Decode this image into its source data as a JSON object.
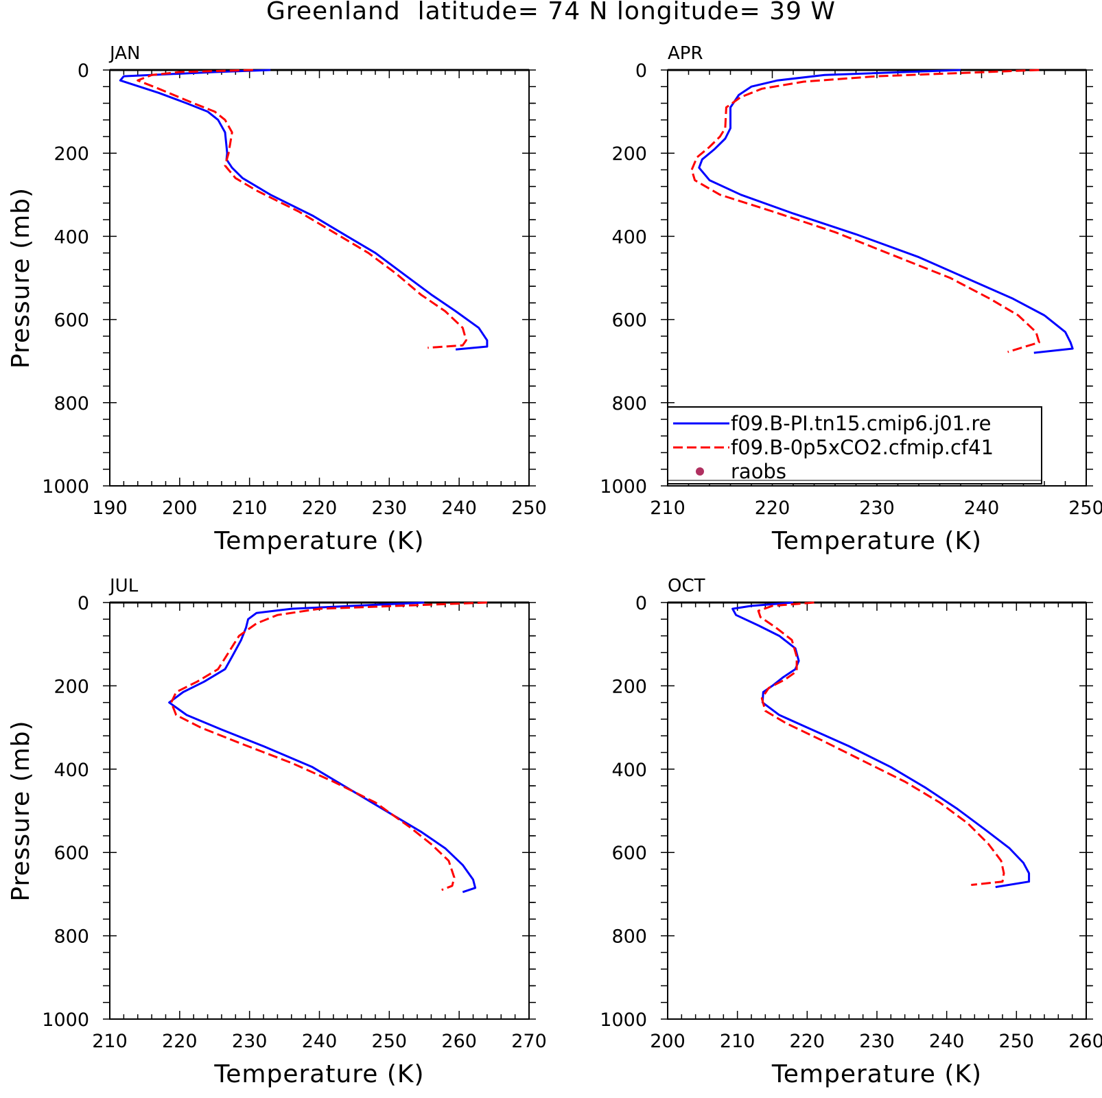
{
  "figure": {
    "title": "Greenland  latitude= 74 N longitude= 39 W"
  },
  "chart_data": [
    {
      "type": "line",
      "panel_label": "JAN",
      "xlabel": "Temperature (K)",
      "ylabel": "Pressure (mb)",
      "xlim": [
        190,
        250
      ],
      "ylim": [
        0,
        1000
      ],
      "y_inverted": true,
      "xticks": [
        190,
        200,
        210,
        220,
        230,
        240,
        250
      ],
      "yticks": [
        0,
        200,
        400,
        600,
        800,
        1000
      ],
      "series": [
        {
          "name": "f09.B-PI.tn15.cmip6.j01.re",
          "color": "#0000ff",
          "dash": "solid",
          "points": [
            [
              213,
              0
            ],
            [
              205,
              5
            ],
            [
              192,
              15
            ],
            [
              191.5,
              25
            ],
            [
              197,
              55
            ],
            [
              201,
              80
            ],
            [
              204,
              100
            ],
            [
              205.5,
              120
            ],
            [
              206.5,
              150
            ],
            [
              206.8,
              200
            ],
            [
              206.7,
              215
            ],
            [
              207.5,
              235
            ],
            [
              209,
              260
            ],
            [
              213,
              300
            ],
            [
              219,
              350
            ],
            [
              224,
              400
            ],
            [
              228,
              440
            ],
            [
              232,
              490
            ],
            [
              236,
              540
            ],
            [
              239.5,
              580
            ],
            [
              242.8,
              620
            ],
            [
              244,
              650
            ],
            [
              244,
              665
            ],
            [
              239.5,
              672
            ]
          ]
        },
        {
          "name": "f09.B-0p5xCO2.cfmip.cf41",
          "color": "#ff0000",
          "dash": "dashed",
          "points": [
            [
              210.5,
              0
            ],
            [
              200,
              5
            ],
            [
              196,
              12
            ],
            [
              194,
              25
            ],
            [
              197,
              45
            ],
            [
              202,
              80
            ],
            [
              205,
              100
            ],
            [
              206.5,
              120
            ],
            [
              207.5,
              150
            ],
            [
              207,
              200
            ],
            [
              206.5,
              230
            ],
            [
              208,
              260
            ],
            [
              211,
              290
            ],
            [
              217,
              340
            ],
            [
              222,
              390
            ],
            [
              227,
              440
            ],
            [
              231,
              490
            ],
            [
              234.5,
              540
            ],
            [
              238,
              580
            ],
            [
              240.5,
              620
            ],
            [
              241,
              650
            ],
            [
              240.5,
              662
            ],
            [
              235.5,
              668
            ]
          ]
        },
        {
          "name": "raobs",
          "color": "#b03060",
          "dash": "marker",
          "points": []
        }
      ],
      "legend": "none"
    },
    {
      "type": "line",
      "panel_label": "APR",
      "xlabel": "Temperature (K)",
      "ylabel": "",
      "xlim": [
        210,
        250
      ],
      "ylim": [
        0,
        1000
      ],
      "y_inverted": true,
      "xticks": [
        210,
        220,
        230,
        240,
        250
      ],
      "yticks": [
        0,
        200,
        400,
        600,
        800,
        1000
      ],
      "series": [
        {
          "name": "f09.B-PI.tn15.cmip6.j01.re",
          "color": "#0000ff",
          "dash": "solid",
          "points": [
            [
              238,
              0
            ],
            [
              225,
              12
            ],
            [
              220.5,
              25
            ],
            [
              218,
              40
            ],
            [
              216.8,
              60
            ],
            [
              216,
              90
            ],
            [
              216,
              140
            ],
            [
              215.5,
              165
            ],
            [
              214.5,
              190
            ],
            [
              213.3,
              215
            ],
            [
              213,
              235
            ],
            [
              214,
              265
            ],
            [
              217,
              300
            ],
            [
              222,
              345
            ],
            [
              228,
              395
            ],
            [
              234,
              450
            ],
            [
              238.5,
              500
            ],
            [
              243,
              550
            ],
            [
              246,
              590
            ],
            [
              248,
              630
            ],
            [
              248.5,
              655
            ],
            [
              248.7,
              670
            ],
            [
              245,
              680
            ]
          ]
        },
        {
          "name": "f09.B-0p5xCO2.cfmip.cf41",
          "color": "#ff0000",
          "dash": "dashed",
          "points": [
            [
              245.5,
              0
            ],
            [
              230,
              15
            ],
            [
              223,
              28
            ],
            [
              219,
              45
            ],
            [
              217,
              65
            ],
            [
              215.6,
              90
            ],
            [
              215.5,
              140
            ],
            [
              215,
              160
            ],
            [
              214,
              185
            ],
            [
              212.8,
              210
            ],
            [
              212.3,
              240
            ],
            [
              212.6,
              265
            ],
            [
              215,
              300
            ],
            [
              220,
              340
            ],
            [
              226,
              390
            ],
            [
              232,
              450
            ],
            [
              237,
              500
            ],
            [
              240.8,
              550
            ],
            [
              243.5,
              590
            ],
            [
              245.2,
              630
            ],
            [
              245.5,
              655
            ],
            [
              242.5,
              678
            ]
          ]
        },
        {
          "name": "raobs",
          "color": "#b03060",
          "dash": "marker",
          "points": []
        }
      ],
      "legend": "bottom-right",
      "legend_entries": [
        "f09.B-PI.tn15.cmip6.j01.re",
        "f09.B-0p5xCO2.cfmip.cf41",
        "raobs"
      ]
    },
    {
      "type": "line",
      "panel_label": "JUL",
      "xlabel": "Temperature (K)",
      "ylabel": "Pressure (mb)",
      "xlim": [
        210,
        270
      ],
      "ylim": [
        0,
        1000
      ],
      "y_inverted": true,
      "xticks": [
        210,
        220,
        230,
        240,
        250,
        260,
        270
      ],
      "yticks": [
        0,
        200,
        400,
        600,
        800,
        1000
      ],
      "series": [
        {
          "name": "f09.B-PI.tn15.cmip6.j01.re",
          "color": "#0000ff",
          "dash": "solid",
          "points": [
            [
              255,
              0
            ],
            [
              236,
              15
            ],
            [
              231,
              25
            ],
            [
              229.8,
              40
            ],
            [
              229.5,
              60
            ],
            [
              228.8,
              90
            ],
            [
              227.5,
              130
            ],
            [
              226.5,
              160
            ],
            [
              223.5,
              190
            ],
            [
              220.5,
              215
            ],
            [
              218.5,
              240
            ],
            [
              221,
              270
            ],
            [
              226,
              305
            ],
            [
              232,
              345
            ],
            [
              239,
              395
            ],
            [
              245,
              455
            ],
            [
              250.5,
              510
            ],
            [
              254.5,
              550
            ],
            [
              258,
              590
            ],
            [
              260.5,
              630
            ],
            [
              262,
              665
            ],
            [
              262.3,
              685
            ],
            [
              260.5,
              695
            ]
          ]
        },
        {
          "name": "f09.B-0p5xCO2.cfmip.cf41",
          "color": "#ff0000",
          "dash": "dashed",
          "points": [
            [
              264,
              0
            ],
            [
              240,
              15
            ],
            [
              234,
              30
            ],
            [
              231,
              50
            ],
            [
              228.5,
              80
            ],
            [
              227,
              120
            ],
            [
              225.5,
              160
            ],
            [
              222.5,
              190
            ],
            [
              219.5,
              215
            ],
            [
              218.8,
              240
            ],
            [
              219.5,
              270
            ],
            [
              223,
              300
            ],
            [
              229,
              340
            ],
            [
              236,
              385
            ],
            [
              242,
              430
            ],
            [
              248,
              480
            ],
            [
              253,
              540
            ],
            [
              256,
              580
            ],
            [
              258.5,
              620
            ],
            [
              259.3,
              660
            ],
            [
              259,
              680
            ],
            [
              257.5,
              690
            ]
          ]
        },
        {
          "name": "raobs",
          "color": "#b03060",
          "dash": "marker",
          "points": []
        }
      ],
      "legend": "none"
    },
    {
      "type": "line",
      "panel_label": "OCT",
      "xlabel": "Temperature (K)",
      "ylabel": "",
      "xlim": [
        200,
        260
      ],
      "ylim": [
        0,
        1000
      ],
      "y_inverted": true,
      "xticks": [
        200,
        210,
        220,
        230,
        240,
        250,
        260
      ],
      "yticks": [
        0,
        200,
        400,
        600,
        800,
        1000
      ],
      "series": [
        {
          "name": "f09.B-PI.tn15.cmip6.j01.re",
          "color": "#0000ff",
          "dash": "solid",
          "points": [
            [
              218,
              0
            ],
            [
              212,
              8
            ],
            [
              209.3,
              15
            ],
            [
              209.8,
              30
            ],
            [
              213,
              55
            ],
            [
              216,
              80
            ],
            [
              218.3,
              110
            ],
            [
              218.8,
              140
            ],
            [
              218.3,
              160
            ],
            [
              216.5,
              180
            ],
            [
              215,
              200
            ],
            [
              213.7,
              215
            ],
            [
              213.6,
              240
            ],
            [
              216,
              270
            ],
            [
              220,
              300
            ],
            [
              226,
              345
            ],
            [
              232,
              395
            ],
            [
              237,
              445
            ],
            [
              241.5,
              495
            ],
            [
              245.5,
              545
            ],
            [
              249,
              590
            ],
            [
              251,
              625
            ],
            [
              251.8,
              650
            ],
            [
              251.8,
              670
            ],
            [
              247,
              683
            ]
          ]
        },
        {
          "name": "f09.B-0p5xCO2.cfmip.cf41",
          "color": "#ff0000",
          "dash": "dashed",
          "points": [
            [
              221,
              0
            ],
            [
              215,
              8
            ],
            [
              213,
              20
            ],
            [
              213.3,
              35
            ],
            [
              215.5,
              60
            ],
            [
              217.8,
              90
            ],
            [
              218.5,
              130
            ],
            [
              218.5,
              165
            ],
            [
              216.8,
              185
            ],
            [
              214.5,
              205
            ],
            [
              213.5,
              230
            ],
            [
              214,
              260
            ],
            [
              217,
              290
            ],
            [
              222,
              330
            ],
            [
              228,
              380
            ],
            [
              234,
              430
            ],
            [
              239,
              480
            ],
            [
              243,
              530
            ],
            [
              246,
              580
            ],
            [
              247.8,
              620
            ],
            [
              248.2,
              650
            ],
            [
              248,
              670
            ],
            [
              243.5,
              678
            ]
          ]
        },
        {
          "name": "raobs",
          "color": "#b03060",
          "dash": "marker",
          "points": []
        }
      ],
      "legend": "none"
    }
  ]
}
